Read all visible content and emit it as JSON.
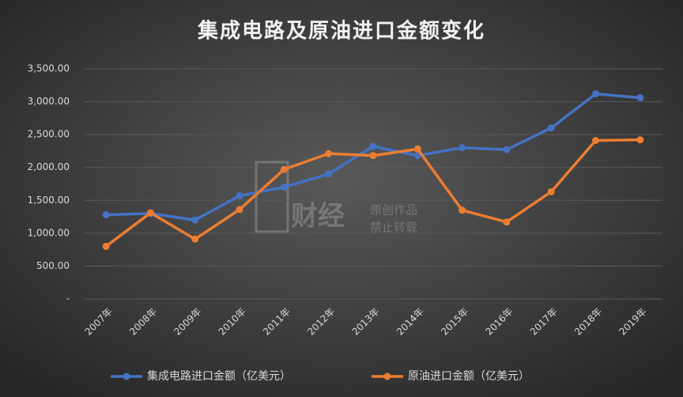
{
  "chart_data": {
    "type": "line",
    "title": "集成电路及原油进口金额变化",
    "categories": [
      "2007年",
      "2008年",
      "2009年",
      "2010年",
      "2011年",
      "2012年",
      "2013年",
      "2014年",
      "2015年",
      "2016年",
      "2017年",
      "2018年",
      "2019年"
    ],
    "series": [
      {
        "name": "集成电路进口金额（亿美元）",
        "color": "#4472c4",
        "values": [
          1280,
          1300,
          1200,
          1570,
          1700,
          1900,
          2320,
          2180,
          2300,
          2270,
          2600,
          3120,
          3060
        ]
      },
      {
        "name": "原油进口金额（亿美元）",
        "color": "#ed7d31",
        "values": [
          800,
          1310,
          910,
          1360,
          1970,
          2210,
          2180,
          2280,
          1350,
          1170,
          1630,
          2410,
          2420
        ]
      }
    ],
    "ylim": [
      0,
      3500
    ],
    "yticks": [
      {
        "value": 0,
        "label": "-"
      },
      {
        "value": 500,
        "label": "500.00"
      },
      {
        "value": 1000,
        "label": "1,000.00"
      },
      {
        "value": 1500,
        "label": "1,500.00"
      },
      {
        "value": 2000,
        "label": "2,000.00"
      },
      {
        "value": 2500,
        "label": "2,500.00"
      },
      {
        "value": 3000,
        "label": "3,000.00"
      },
      {
        "value": 3500,
        "label": "3,500.00"
      }
    ],
    "grid": true,
    "legend": "bottom",
    "watermark": [
      "财经",
      "原创作品",
      "禁止转载"
    ]
  }
}
